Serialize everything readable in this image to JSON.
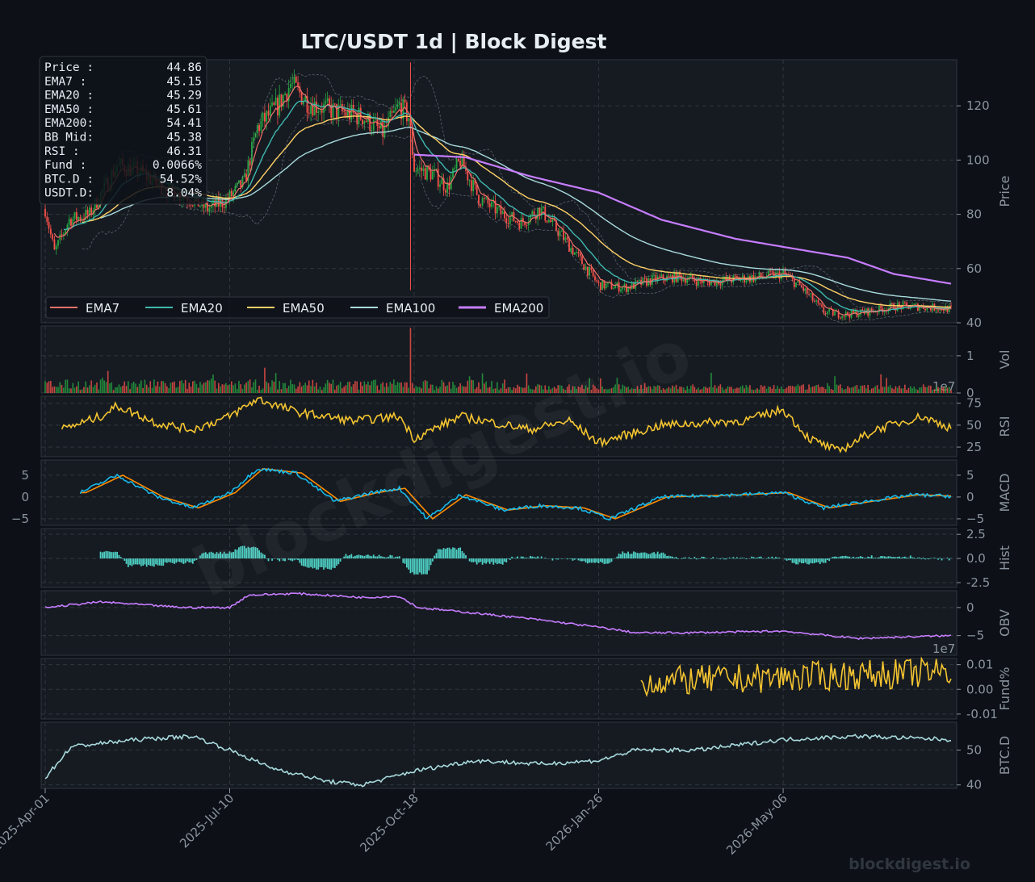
{
  "title": "LTC/USDT  1d  |  Block Digest",
  "watermark": "blockdigest.io",
  "footer_brand": "blockdigest.io",
  "colors": {
    "bg": "#0d1117",
    "panel": "#161b22",
    "grid": "#30363d",
    "text": "#8b949e",
    "title": "#e6edf3",
    "up": "#26a641",
    "down": "#f85149",
    "ema7": "#f0716a",
    "ema20": "#3fb8af",
    "ema50": "#ffd166",
    "ema100": "#a8dadc",
    "ema200": "#c77dff",
    "rsi": "#f4c430",
    "macd": "#17b8e8",
    "signal": "#ff8c00",
    "hist": "#4fd1c5",
    "obv": "#c77dff",
    "fund": "#f4c430",
    "btcd": "#a8dadc",
    "bb": "#8b949e"
  },
  "info_box": [
    {
      "label": "Price :",
      "value": "44.86"
    },
    {
      "label": "EMA7  :",
      "value": "45.15"
    },
    {
      "label": "EMA20 :",
      "value": "45.29"
    },
    {
      "label": "EMA50 :",
      "value": "45.61"
    },
    {
      "label": "EMA200:",
      "value": "54.41"
    },
    {
      "label": "BB Mid:",
      "value": "45.38"
    },
    {
      "label": "RSI   :",
      "value": "46.31"
    },
    {
      "label": "Fund  :",
      "value": "0.0066%"
    },
    {
      "label": "BTC.D :",
      "value": "54.52%"
    },
    {
      "label": "USDT.D:",
      "value": "8.04%"
    }
  ],
  "chart_data": {
    "type": "line",
    "x_range": [
      "2025-04-01",
      "2026-08-05"
    ],
    "x_ticks": [
      "2025-Apr-01",
      "2025-Jul-10",
      "2025-Oct-18",
      "2026-Jan-26",
      "2026-May-06"
    ],
    "legend": [
      "EMA7",
      "EMA20",
      "EMA50",
      "EMA100",
      "EMA200"
    ],
    "legend_position": "lower-left",
    "price_path": [
      [
        "2025-04-01",
        82
      ],
      [
        "2025-04-06",
        66
      ],
      [
        "2025-04-14",
        78
      ],
      [
        "2025-04-25",
        80
      ],
      [
        "2025-05-10",
        98
      ],
      [
        "2025-05-22",
        96
      ],
      [
        "2025-06-05",
        89
      ],
      [
        "2025-06-18",
        86
      ],
      [
        "2025-06-28",
        82
      ],
      [
        "2025-07-08",
        85
      ],
      [
        "2025-07-18",
        92
      ],
      [
        "2025-07-25",
        112
      ],
      [
        "2025-08-05",
        120
      ],
      [
        "2025-08-12",
        128
      ],
      [
        "2025-08-22",
        121
      ],
      [
        "2025-09-05",
        118
      ],
      [
        "2025-09-20",
        116
      ],
      [
        "2025-10-01",
        110
      ],
      [
        "2025-10-10",
        120
      ],
      [
        "2025-10-15",
        116
      ],
      [
        "2025-10-18",
        97
      ],
      [
        "2025-10-28",
        95
      ],
      [
        "2025-11-05",
        90
      ],
      [
        "2025-11-12",
        100
      ],
      [
        "2025-11-22",
        86
      ],
      [
        "2025-12-05",
        80
      ],
      [
        "2025-12-15",
        77
      ],
      [
        "2025-12-25",
        82
      ],
      [
        "2026-01-05",
        73
      ],
      [
        "2026-01-15",
        64
      ],
      [
        "2026-01-26",
        54
      ],
      [
        "2026-02-10",
        53
      ],
      [
        "2026-02-25",
        56
      ],
      [
        "2026-03-10",
        57
      ],
      [
        "2026-03-25",
        55
      ],
      [
        "2026-04-10",
        56
      ],
      [
        "2026-04-25",
        57
      ],
      [
        "2026-05-06",
        58
      ],
      [
        "2026-05-16",
        53
      ],
      [
        "2026-05-28",
        44
      ],
      [
        "2026-06-08",
        43
      ],
      [
        "2026-06-20",
        44
      ],
      [
        "2026-07-05",
        46
      ],
      [
        "2026-07-20",
        46
      ],
      [
        "2026-08-05",
        45
      ]
    ],
    "ema200_path": [
      [
        "2025-10-18",
        102
      ],
      [
        "2025-11-15",
        101
      ],
      [
        "2025-12-20",
        94
      ],
      [
        "2026-01-26",
        88
      ],
      [
        "2026-03-01",
        78
      ],
      [
        "2026-04-10",
        71
      ],
      [
        "2026-05-06",
        68
      ],
      [
        "2026-06-10",
        64
      ],
      [
        "2026-07-05",
        58
      ],
      [
        "2026-08-05",
        54.4
      ]
    ],
    "panels": [
      {
        "name": "Price",
        "ylabel": "Price",
        "ylim": [
          40,
          137
        ],
        "ticks": [
          40,
          60,
          80,
          100,
          120
        ]
      },
      {
        "name": "Volume",
        "ylabel": "Vol",
        "ylim": [
          0,
          1.8
        ],
        "ticks": [
          0,
          1
        ],
        "scale_label": "1e7"
      },
      {
        "name": "RSI",
        "ylabel": "RSI",
        "ylim": [
          14,
          83
        ],
        "ticks": [
          25,
          50,
          75
        ]
      },
      {
        "name": "MACD",
        "ylabel": "MACD",
        "ylim": [
          -6.5,
          8.5
        ],
        "ticks": [
          -5,
          0,
          5
        ]
      },
      {
        "name": "Hist",
        "ylabel": "Hist",
        "ylim": [
          -3,
          3.1
        ],
        "ticks": [
          -2.5,
          0.0,
          2.5
        ]
      },
      {
        "name": "OBV",
        "ylabel": "OBV",
        "ylim": [
          -8.5,
          3
        ],
        "ticks": [
          -5,
          0
        ],
        "scale_label": "1e7"
      },
      {
        "name": "Fund",
        "ylabel": "Fund%",
        "ylim": [
          -0.012,
          0.0125
        ],
        "ticks": [
          -0.01,
          0.0,
          0.01
        ]
      },
      {
        "name": "BTC.D",
        "ylabel": "BTC.D",
        "ylim": [
          39,
          58
        ],
        "ticks": [
          40,
          50
        ]
      }
    ],
    "indicator_paths": {
      "rsi": [
        [
          "2025-04-10",
          45
        ],
        [
          "2025-05-01",
          60
        ],
        [
          "2025-05-10",
          72
        ],
        [
          "2025-06-01",
          52
        ],
        [
          "2025-06-20",
          45
        ],
        [
          "2025-07-10",
          60
        ],
        [
          "2025-07-25",
          80
        ],
        [
          "2025-08-15",
          65
        ],
        [
          "2025-09-15",
          55
        ],
        [
          "2025-10-10",
          60
        ],
        [
          "2025-10-18",
          35
        ],
        [
          "2025-11-12",
          60
        ],
        [
          "2025-12-20",
          45
        ],
        [
          "2026-01-10",
          55
        ],
        [
          "2026-01-26",
          30
        ],
        [
          "2026-03-01",
          50
        ],
        [
          "2026-04-15",
          55
        ],
        [
          "2026-05-06",
          68
        ],
        [
          "2026-05-20",
          35
        ],
        [
          "2026-06-05",
          20
        ],
        [
          "2026-06-25",
          45
        ],
        [
          "2026-07-20",
          60
        ],
        [
          "2026-08-05",
          47
        ]
      ],
      "macd": [
        [
          "2025-04-20",
          1
        ],
        [
          "2025-05-10",
          5
        ],
        [
          "2025-06-01",
          0
        ],
        [
          "2025-06-20",
          -2.5
        ],
        [
          "2025-07-10",
          1
        ],
        [
          "2025-07-25",
          6.5
        ],
        [
          "2025-08-15",
          5.5
        ],
        [
          "2025-09-05",
          -1
        ],
        [
          "2025-09-25",
          1
        ],
        [
          "2025-10-10",
          2
        ],
        [
          "2025-10-25",
          -5
        ],
        [
          "2025-11-12",
          0.5
        ],
        [
          "2025-12-05",
          -3
        ],
        [
          "2025-12-25",
          -2
        ],
        [
          "2026-01-15",
          -2.5
        ],
        [
          "2026-02-01",
          -5
        ],
        [
          "2026-03-01",
          0
        ],
        [
          "2026-04-10",
          0.5
        ],
        [
          "2026-05-06",
          1
        ],
        [
          "2026-05-28",
          -2.5
        ],
        [
          "2026-06-20",
          -1
        ],
        [
          "2026-07-15",
          0.5
        ],
        [
          "2026-08-05",
          0.2
        ]
      ],
      "obv": [
        [
          "2025-04-01",
          0
        ],
        [
          "2025-05-01",
          1
        ],
        [
          "2025-06-15",
          0
        ],
        [
          "2025-07-10",
          0
        ],
        [
          "2025-07-20",
          2.2
        ],
        [
          "2025-08-15",
          2.5
        ],
        [
          "2025-09-20",
          1.8
        ],
        [
          "2025-10-10",
          2
        ],
        [
          "2025-10-20",
          0
        ],
        [
          "2025-11-20",
          -1
        ],
        [
          "2025-12-20",
          -2
        ],
        [
          "2026-01-26",
          -3.5
        ],
        [
          "2026-02-15",
          -4.5
        ],
        [
          "2026-03-15",
          -4.5
        ],
        [
          "2026-05-06",
          -4.2
        ],
        [
          "2026-06-15",
          -5.5
        ],
        [
          "2026-08-05",
          -5
        ]
      ],
      "fund": [
        [
          "2026-02-18",
          0.003
        ],
        [
          "2026-08-05",
          0.007
        ]
      ],
      "btcd": [
        [
          "2025-04-01",
          42
        ],
        [
          "2025-04-15",
          51
        ],
        [
          "2025-05-20",
          53
        ],
        [
          "2025-06-20",
          54
        ],
        [
          "2025-07-10",
          50
        ],
        [
          "2025-08-01",
          45
        ],
        [
          "2025-09-01",
          41
        ],
        [
          "2025-09-20",
          40
        ],
        [
          "2025-10-18",
          44
        ],
        [
          "2025-11-20",
          47
        ],
        [
          "2025-12-25",
          46
        ],
        [
          "2026-01-26",
          47
        ],
        [
          "2026-02-15",
          50
        ],
        [
          "2026-03-20",
          50
        ],
        [
          "2026-05-06",
          53
        ],
        [
          "2026-06-15",
          54
        ],
        [
          "2026-08-05",
          53
        ]
      ]
    }
  }
}
